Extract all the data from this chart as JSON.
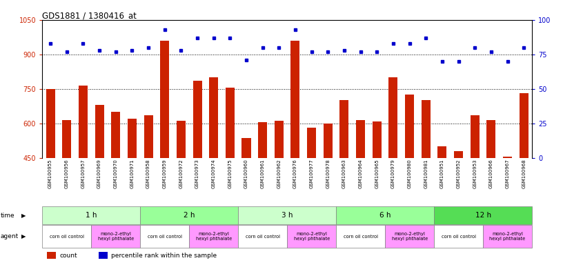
{
  "title": "GDS1881 / 1380416_at",
  "samples": [
    "GSM100955",
    "GSM100956",
    "GSM100957",
    "GSM100969",
    "GSM100970",
    "GSM100971",
    "GSM100958",
    "GSM100959",
    "GSM100972",
    "GSM100973",
    "GSM100974",
    "GSM100975",
    "GSM100960",
    "GSM100961",
    "GSM100962",
    "GSM100976",
    "GSM100977",
    "GSM100978",
    "GSM100963",
    "GSM100964",
    "GSM100965",
    "GSM100979",
    "GSM100980",
    "GSM100981",
    "GSM100951",
    "GSM100952",
    "GSM100953",
    "GSM100966",
    "GSM100967",
    "GSM100968"
  ],
  "counts": [
    750,
    615,
    765,
    680,
    650,
    620,
    635,
    960,
    610,
    785,
    800,
    755,
    535,
    605,
    610,
    960,
    580,
    600,
    700,
    615,
    608,
    800,
    725,
    700,
    500,
    480,
    635,
    615,
    455,
    730
  ],
  "percentile_ranks": [
    83,
    77,
    83,
    78,
    77,
    78,
    80,
    93,
    78,
    87,
    87,
    87,
    71,
    80,
    80,
    93,
    77,
    77,
    78,
    77,
    77,
    83,
    83,
    87,
    70,
    70,
    80,
    77,
    70,
    80
  ],
  "ylim_left": [
    450,
    1050
  ],
  "ylim_right": [
    0,
    100
  ],
  "yticks_left": [
    450,
    600,
    750,
    900,
    1050
  ],
  "yticks_right": [
    0,
    25,
    50,
    75,
    100
  ],
  "bar_color": "#cc2200",
  "dot_color": "#0000cc",
  "grid_color": "#000000",
  "background_color": "#ffffff",
  "time_groups": [
    {
      "label": "1 h",
      "start": 0,
      "end": 6,
      "color": "#ccffcc"
    },
    {
      "label": "2 h",
      "start": 6,
      "end": 12,
      "color": "#99ff99"
    },
    {
      "label": "3 h",
      "start": 12,
      "end": 18,
      "color": "#ccffcc"
    },
    {
      "label": "6 h",
      "start": 18,
      "end": 24,
      "color": "#99ff99"
    },
    {
      "label": "12 h",
      "start": 24,
      "end": 30,
      "color": "#55dd55"
    }
  ],
  "agent_groups": [
    {
      "label": "corn oil control",
      "start": 0,
      "end": 3,
      "color": "#ffffff"
    },
    {
      "label": "mono-2-ethyl\nhexyl phthalate",
      "start": 3,
      "end": 6,
      "color": "#ff99ff"
    },
    {
      "label": "corn oil control",
      "start": 6,
      "end": 9,
      "color": "#ffffff"
    },
    {
      "label": "mono-2-ethyl\nhexyl phthalate",
      "start": 9,
      "end": 12,
      "color": "#ff99ff"
    },
    {
      "label": "corn oil control",
      "start": 12,
      "end": 15,
      "color": "#ffffff"
    },
    {
      "label": "mono-2-ethyl\nhexyl phthalate",
      "start": 15,
      "end": 18,
      "color": "#ff99ff"
    },
    {
      "label": "corn oil control",
      "start": 18,
      "end": 21,
      "color": "#ffffff"
    },
    {
      "label": "mono-2-ethyl\nhexyl phthalate",
      "start": 21,
      "end": 24,
      "color": "#ff99ff"
    },
    {
      "label": "corn oil control",
      "start": 24,
      "end": 27,
      "color": "#ffffff"
    },
    {
      "label": "mono-2-ethyl\nhexyl phthalate",
      "start": 27,
      "end": 30,
      "color": "#ff99ff"
    }
  ]
}
